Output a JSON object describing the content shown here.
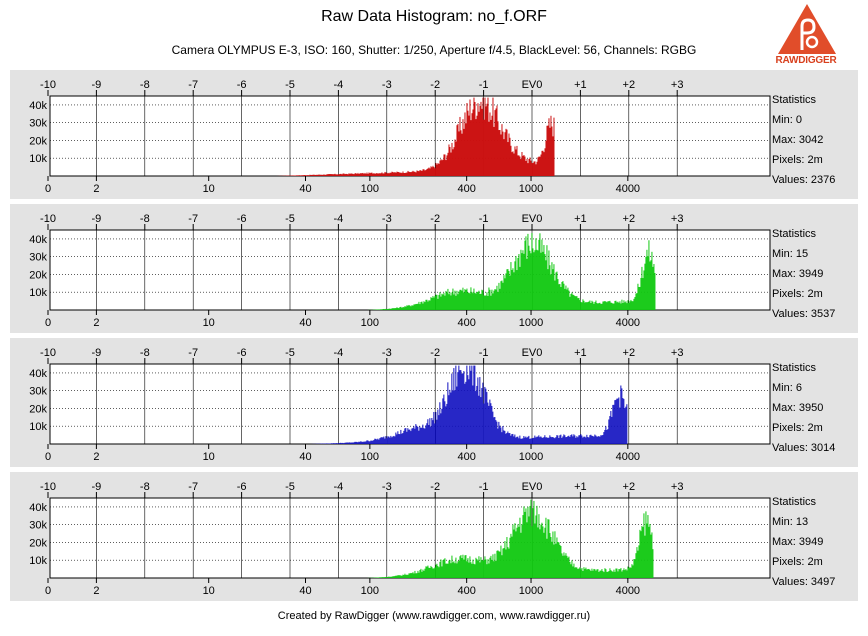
{
  "header": {
    "title": "Raw Data Histogram: no_f.ORF",
    "subtitle": "Camera OLYMPUS E-3, ISO: 160, Shutter: 1/250, Aperture f/4.5, BlackLevel: 56, Channels: RGBG",
    "logo_text": "RAWDIGGER"
  },
  "footer": {
    "text": "Created by RawDigger (www.rawdigger.com, www.rawdigger.ru)"
  },
  "colors": {
    "panel_bg": "#e3e3e3",
    "plot_bg": "#ffffff",
    "red": "#cc1010",
    "green": "#10c810",
    "blue": "#1010c0",
    "logo": "#e14d2a"
  },
  "chart_data": [
    {
      "type": "area",
      "channel": "R",
      "color": "#cc1010",
      "ev_ticks": [
        "-10",
        "-9",
        "-8",
        "-7",
        "-6",
        "-5",
        "-4",
        "-3",
        "-2",
        "-1",
        "EV0",
        "+1",
        "+2",
        "+3"
      ],
      "x_ticks": [
        "0",
        "2",
        "10",
        "40",
        "100",
        "400",
        "1000",
        "4000"
      ],
      "y_ticks": [
        "40k",
        "30k",
        "20k",
        "10k"
      ],
      "ylim": [
        0,
        45000
      ],
      "x_scale": "log-ev",
      "grid": true,
      "stats": {
        "heading": "Statistics",
        "min": "Min: 0",
        "max": "Max: 3042",
        "pixels": "Pixels: 2m",
        "values": "Values: 2376"
      },
      "peaks": [
        {
          "ev": -1.1,
          "count": 38000,
          "width": 0.85
        },
        {
          "ev": -0.4,
          "count": 4000,
          "width": 0.9
        },
        {
          "ev": 0.4,
          "count": 24000,
          "width": 0.28
        }
      ],
      "tail": {
        "from_ev": -5.3,
        "slope": 0.55
      },
      "clip_ev": 0.45
    },
    {
      "type": "area",
      "channel": "G",
      "color": "#10c810",
      "ev_ticks": [
        "-10",
        "-9",
        "-8",
        "-7",
        "-6",
        "-5",
        "-4",
        "-3",
        "-2",
        "-1",
        "EV0",
        "+1",
        "+2",
        "+3"
      ],
      "x_ticks": [
        "0",
        "2",
        "10",
        "40",
        "100",
        "400",
        "1000",
        "4000"
      ],
      "y_ticks": [
        "40k",
        "30k",
        "20k",
        "10k"
      ],
      "ylim": [
        0,
        45000
      ],
      "x_scale": "log-ev",
      "grid": true,
      "stats": {
        "heading": "Statistics",
        "min": "Min: 15",
        "max": "Max: 3949",
        "pixels": "Pixels: 2m",
        "values": "Values: 3537"
      },
      "peaks": [
        {
          "ev": 0.0,
          "count": 34000,
          "width": 0.85
        },
        {
          "ev": -1.5,
          "count": 9000,
          "width": 1.2
        },
        {
          "ev": 2.4,
          "count": 27000,
          "width": 0.28
        }
      ],
      "tail": {
        "from_ev": -3.4,
        "slope": 0.6
      },
      "clip_ev": 2.55
    },
    {
      "type": "area",
      "channel": "B",
      "color": "#1010c0",
      "ev_ticks": [
        "-10",
        "-9",
        "-8",
        "-7",
        "-6",
        "-5",
        "-4",
        "-3",
        "-2",
        "-1",
        "EV0",
        "+1",
        "+2",
        "+3"
      ],
      "x_ticks": [
        "0",
        "2",
        "10",
        "40",
        "100",
        "400",
        "1000",
        "4000"
      ],
      "y_ticks": [
        "40k",
        "30k",
        "20k",
        "10k"
      ],
      "ylim": [
        0,
        45000
      ],
      "x_scale": "log-ev",
      "grid": true,
      "stats": {
        "heading": "Statistics",
        "min": "Min: 6",
        "max": "Max: 3950",
        "pixels": "Pixels: 2m",
        "values": "Values: 3014"
      },
      "peaks": [
        {
          "ev": -1.35,
          "count": 40000,
          "width": 0.75
        },
        {
          "ev": -2.3,
          "count": 7000,
          "width": 1.1
        },
        {
          "ev": 1.8,
          "count": 22000,
          "width": 0.3
        }
      ],
      "tail": {
        "from_ev": -4.6,
        "slope": 0.55
      },
      "clip_ev": 1.95
    },
    {
      "type": "area",
      "channel": "G2",
      "color": "#10c810",
      "ev_ticks": [
        "-10",
        "-9",
        "-8",
        "-7",
        "-6",
        "-5",
        "-4",
        "-3",
        "-2",
        "-1",
        "EV0",
        "+1",
        "+2",
        "+3"
      ],
      "x_ticks": [
        "0",
        "2",
        "10",
        "40",
        "100",
        "400",
        "1000",
        "4000"
      ],
      "y_ticks": [
        "40k",
        "30k",
        "20k",
        "10k"
      ],
      "ylim": [
        0,
        45000
      ],
      "x_scale": "log-ev",
      "grid": true,
      "stats": {
        "heading": "Statistics",
        "min": "Min: 13",
        "max": "Max: 3949",
        "pixels": "Pixels: 2m",
        "values": "Values: 3497"
      },
      "peaks": [
        {
          "ev": 0.0,
          "count": 34000,
          "width": 0.85
        },
        {
          "ev": -1.5,
          "count": 9000,
          "width": 1.2
        },
        {
          "ev": 2.35,
          "count": 27000,
          "width": 0.28
        }
      ],
      "tail": {
        "from_ev": -3.4,
        "slope": 0.6
      },
      "clip_ev": 2.5
    }
  ]
}
